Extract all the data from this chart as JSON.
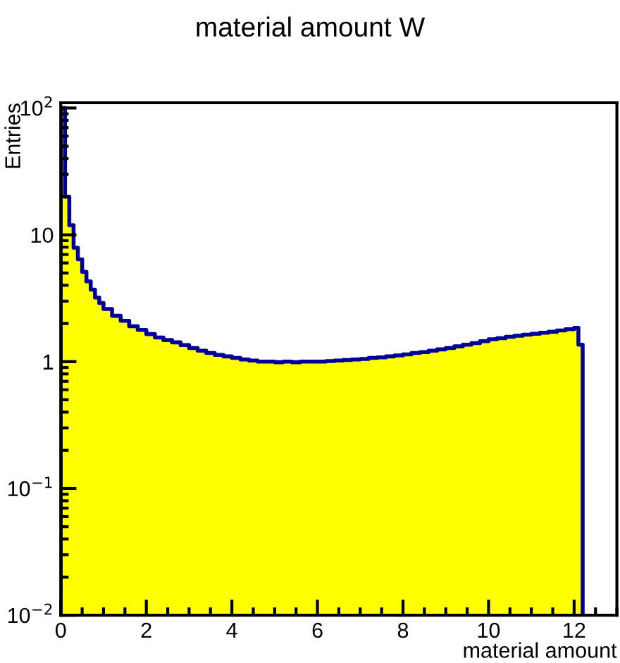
{
  "chart_data": {
    "type": "histogram",
    "title": "material amount W",
    "xlabel": "material amount",
    "ylabel": "Entries",
    "bins": [
      0,
      0.1,
      0.2,
      0.3,
      0.4,
      0.5,
      0.6,
      0.7,
      0.8,
      0.9,
      1.0,
      1.2,
      1.4,
      1.6,
      1.8,
      2.0,
      2.2,
      2.4,
      2.6,
      2.8,
      3.0,
      3.2,
      3.4,
      3.6,
      3.8,
      4.0,
      4.2,
      4.4,
      4.6,
      4.8,
      5.0,
      5.2,
      5.4,
      5.6,
      5.8,
      6.0,
      6.2,
      6.4,
      6.6,
      6.8,
      7.0,
      7.2,
      7.4,
      7.6,
      7.8,
      8.0,
      8.2,
      8.4,
      8.6,
      8.8,
      9.0,
      9.2,
      9.4,
      9.6,
      9.8,
      10.0,
      10.2,
      10.4,
      10.6,
      10.8,
      11.0,
      11.2,
      11.4,
      11.6,
      11.8,
      12.0,
      12.1,
      12.2
    ],
    "values": [
      100,
      20,
      11.9,
      7.9,
      6.4,
      5.1,
      4.3,
      3.7,
      3.2,
      2.9,
      2.6,
      2.3,
      2.1,
      1.9,
      1.78,
      1.65,
      1.55,
      1.48,
      1.42,
      1.35,
      1.28,
      1.22,
      1.17,
      1.13,
      1.1,
      1.07,
      1.04,
      1.02,
      1.0,
      1.0,
      0.99,
      1.0,
      0.99,
      1.0,
      1.0,
      1.0,
      1.01,
      1.02,
      1.03,
      1.04,
      1.05,
      1.07,
      1.08,
      1.1,
      1.12,
      1.14,
      1.17,
      1.19,
      1.22,
      1.25,
      1.28,
      1.32,
      1.36,
      1.4,
      1.45,
      1.5,
      1.53,
      1.57,
      1.6,
      1.63,
      1.66,
      1.69,
      1.72,
      1.76,
      1.8,
      1.85,
      1.36
    ],
    "color": "#ffff00",
    "log": "y",
    "xlim": [
      0,
      13
    ],
    "xticks": [
      0,
      2,
      4,
      6,
      8,
      10,
      12
    ],
    "ylim": [
      0.01,
      110
    ],
    "yticks": [
      {
        "value": 0.01,
        "label": "10$^{−2}$"
      },
      {
        "value": 0.1,
        "label": "10$^{−1}$"
      },
      1,
      10,
      {
        "value": 100,
        "label": "10$^{2}$"
      }
    ],
    "grid": false,
    "legend": false
  }
}
